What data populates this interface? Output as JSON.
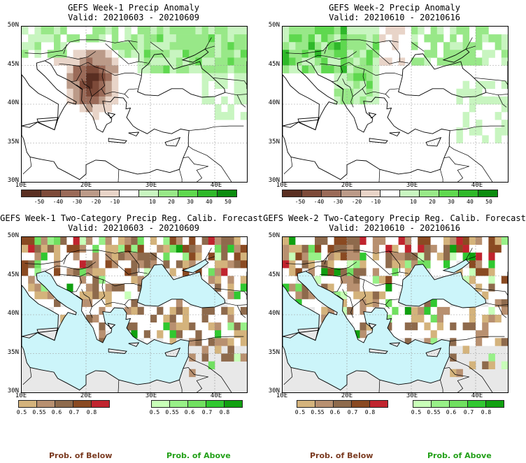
{
  "panels": {
    "tl": {
      "title": "GEFS Week-1 Precip Anomaly",
      "valid": "Valid: 20210603 - 20210609"
    },
    "tr": {
      "title": "GEFS Week-2 Precip Anomaly",
      "valid": "Valid: 20210610 - 20210616"
    },
    "bl": {
      "title": "GEFS Week-1 Two-Category Precip Reg. Calib. Forecast",
      "valid": "Valid: 20210603 - 20210609"
    },
    "br": {
      "title": "GEFS Week-2 Two-Category Precip Reg. Calib. Forecast",
      "valid": "Valid: 20210610 - 20210616"
    }
  },
  "lat_labels": [
    "50N",
    "45N",
    "40N",
    "35N",
    "30N"
  ],
  "lon_labels": [
    "10E",
    "20E",
    "30E",
    "40E"
  ],
  "anomaly_ticks": [
    "-50",
    "-40",
    "-30",
    "-20",
    "-10",
    "10",
    "20",
    "30",
    "40",
    "50"
  ],
  "below_ticks": [
    "0.5",
    "0.55",
    "0.6",
    "0.7",
    "0.8"
  ],
  "above_ticks": [
    "0.5",
    "0.55",
    "0.6",
    "0.7",
    "0.8"
  ],
  "legend": {
    "below": "Prob. of Below",
    "above": "Prob. of Above"
  },
  "colors": {
    "sea": "#ccf5fa",
    "land": "#ffffff",
    "missing": "#e8e8e8",
    "anomaly_brown": [
      "#5a2f22",
      "#7d4a39",
      "#9a6a58",
      "#bb9a88",
      "#e8d4c8"
    ],
    "anomaly_green": [
      "#c8f5c0",
      "#98e888",
      "#5fd84f",
      "#2fb82a",
      "#0c8c10"
    ],
    "below": [
      "#d4b37c",
      "#b89070",
      "#8e6a4c",
      "#8a4a22",
      "#c0242e"
    ],
    "above": [
      "#c8ffb8",
      "#98f088",
      "#70e060",
      "#30c830",
      "#10a010"
    ],
    "below_text": "#7a3a20",
    "above_text": "#22a018"
  }
}
